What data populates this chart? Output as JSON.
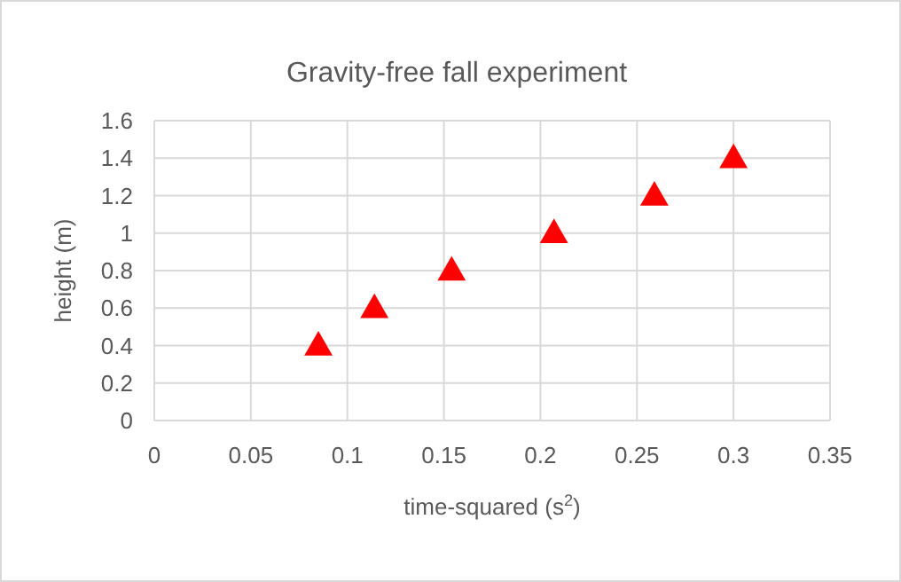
{
  "chart_data": {
    "type": "scatter",
    "title": "Gravity-free fall experiment",
    "xlabel": "time-squared (s$^{2}$)",
    "ylabel": "height (m)",
    "x": [
      0.085,
      0.114,
      0.154,
      0.207,
      0.259,
      0.3
    ],
    "series": [
      {
        "color": "#ff0000",
        "values": [
          0.4,
          0.6,
          0.8,
          1,
          1.2,
          1.4
        ]
      }
    ],
    "xlim": [
      0,
      0.35
    ],
    "xticks": [
      0,
      0.05,
      0.1,
      0.15,
      0.2,
      0.25,
      0.3,
      0.35
    ],
    "ylim": [
      0,
      1.6
    ],
    "yticks": [
      0,
      0.2,
      0.4,
      0.6,
      0.8,
      1,
      1.2,
      1.4,
      1.6
    ],
    "grid": true,
    "marker": "triangle"
  }
}
